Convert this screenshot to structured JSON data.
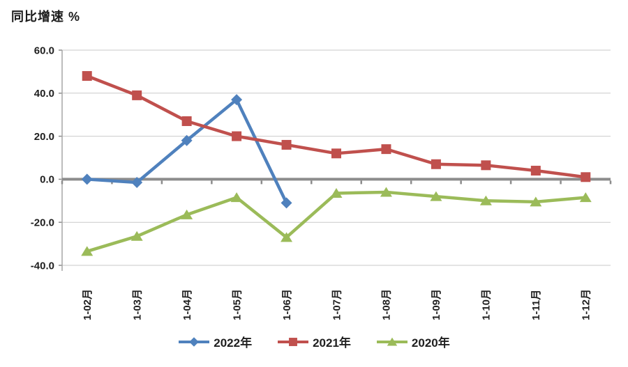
{
  "chart_data": {
    "type": "line",
    "title": "同比增速 %",
    "categories": [
      "1-02月",
      "1-03月",
      "1-04月",
      "1-05月",
      "1-06月",
      "1-07月",
      "1-08月",
      "1-09月",
      "1-10月",
      "1-11月",
      "1-12月"
    ],
    "series": [
      {
        "name": "2022年",
        "color": "#4F81BD",
        "marker": "diamond",
        "values": [
          0.0,
          -1.5,
          18.0,
          37.0,
          -11.0,
          null,
          null,
          null,
          null,
          null,
          null
        ]
      },
      {
        "name": "2021年",
        "color": "#C0504D",
        "marker": "square",
        "values": [
          48.0,
          39.0,
          27.0,
          20.0,
          16.0,
          12.0,
          14.0,
          7.0,
          6.5,
          4.0,
          1.0
        ]
      },
      {
        "name": "2020年",
        "color": "#9BBB59",
        "marker": "triangle",
        "values": [
          -33.5,
          -26.5,
          -16.5,
          -8.5,
          -27.0,
          -6.5,
          -6.0,
          -8.0,
          -10.0,
          -10.5,
          -8.5
        ]
      }
    ],
    "ylabel": "同比增速 %",
    "xlabel": "",
    "ylim": [
      -40,
      60
    ],
    "yticks": [
      60,
      40,
      20,
      0,
      -20,
      -40
    ],
    "ytick_labels": [
      "60.0",
      "40.0",
      "20.0",
      "0.0",
      "-20.0",
      "-40.0"
    ],
    "grid": true,
    "legend_position": "bottom",
    "colors": {
      "gridline": "#C9C9C9",
      "axis_line": "#A6A6A6",
      "zero_axis": "#8C8C8C",
      "text": "#1F1F1F",
      "background": "#FFFFFF"
    }
  }
}
